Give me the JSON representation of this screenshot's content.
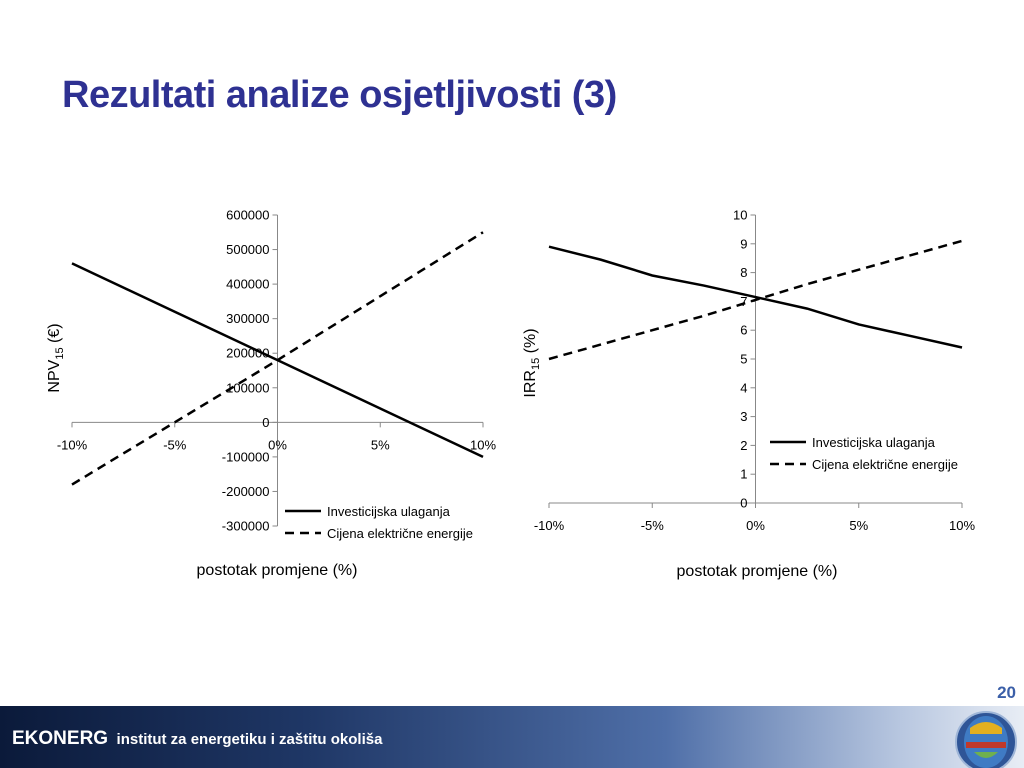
{
  "slide": {
    "title": "Rezultati analize osjetljivosti (3)",
    "page_number": "20"
  },
  "footer": {
    "brand": "EKONERG",
    "subtitle": "institut za energetiku i zaštitu okoliša"
  },
  "colors": {
    "title": "#2E3192",
    "page_number": "#3B5FA8",
    "lines": "#000000"
  },
  "chart_data": [
    {
      "type": "line",
      "ylabel": "NPV",
      "ylabel_sub": "15",
      "ylabel_suffix": " (€)",
      "xlabel": "postotak promjene (%)",
      "x": [
        -10,
        -5,
        0,
        5,
        10
      ],
      "x_tick_labels": [
        "-10%",
        "-5%",
        "0%",
        "5%",
        "10%"
      ],
      "ylim": [
        -300000,
        600000
      ],
      "y_ticks": [
        -300000,
        -200000,
        -100000,
        0,
        100000,
        200000,
        300000,
        400000,
        500000,
        600000
      ],
      "y_tick_labels": [
        "-300000",
        "-200000",
        "-100000",
        "0",
        "100000",
        "200000",
        "300000",
        "400000",
        "500000",
        "600000"
      ],
      "grid": false,
      "legend_position": "bottom-right",
      "series": [
        {
          "name": "Investicijska ulaganja",
          "style": "solid",
          "values": [
            460000,
            320000,
            180000,
            40000,
            -100000
          ]
        },
        {
          "name": "Cijena električne energije",
          "style": "dashed",
          "values": [
            -180000,
            0,
            180000,
            365000,
            550000
          ]
        }
      ]
    },
    {
      "type": "line",
      "ylabel": "IRR",
      "ylabel_sub": "15",
      "ylabel_suffix": " (%)",
      "xlabel": "postotak promjene (%)",
      "x": [
        -10,
        -7.5,
        -5,
        -2.5,
        0,
        2.5,
        5,
        7.5,
        10
      ],
      "x_tick_labels": [
        "-10%",
        "-5%",
        "0%",
        "5%",
        "10%"
      ],
      "x_tick_values": [
        -10,
        -5,
        0,
        5,
        10
      ],
      "ylim": [
        0,
        10
      ],
      "y_ticks": [
        0,
        1,
        2,
        3,
        4,
        5,
        6,
        7,
        8,
        9,
        10
      ],
      "y_tick_labels": [
        "0",
        "1",
        "2",
        "3",
        "4",
        "5",
        "6",
        "7",
        "8",
        "9",
        "10"
      ],
      "grid": false,
      "legend_position": "right",
      "series": [
        {
          "name": "Investicijska ulaganja",
          "style": "solid",
          "values": [
            8.9,
            8.45,
            7.9,
            7.55,
            7.15,
            6.75,
            6.2,
            5.8,
            5.4
          ]
        },
        {
          "name": "Cijena električne energije",
          "style": "dashed",
          "values": [
            5.0,
            5.5,
            6.0,
            6.5,
            7.05,
            7.6,
            8.1,
            8.6,
            9.1
          ]
        }
      ]
    }
  ]
}
